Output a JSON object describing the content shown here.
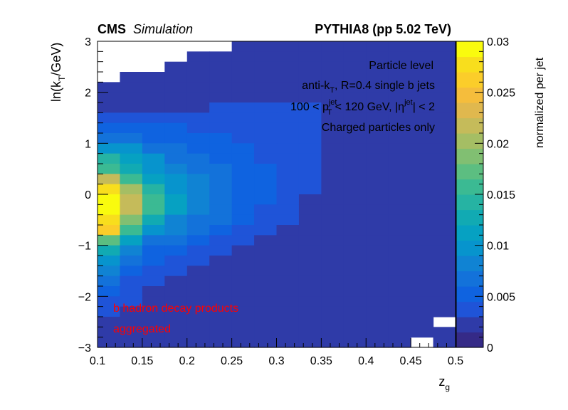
{
  "header": {
    "experiment": "CMS",
    "status": "Simulation",
    "generator": "PYTHIA8 (pp 5.02 TeV)"
  },
  "annotations": {
    "line1": "Particle level",
    "line2": {
      "pre": "anti-k",
      "sub": "T",
      "post": ", R=0.4 single b jets"
    },
    "line3": {
      "a": "100 < p",
      "sup1": "jet",
      "sub1": "T",
      "b": " < 120 GeV, |η",
      "sup2": "jet",
      "c": "| < 2"
    },
    "line4": "Charged particles only",
    "red_line1": "b hadron decay products",
    "red_line2": "aggregated",
    "red_color": "#ff0000"
  },
  "colorbar": {
    "label": "normalized per jet",
    "ticks": [
      "0",
      "0.005",
      "0.01",
      "0.015",
      "0.02",
      "0.025",
      "0.03"
    ]
  },
  "chart_data": {
    "type": "heatmap",
    "title": "",
    "xlabel": {
      "main": "z",
      "sub": "g"
    },
    "ylabel": {
      "pre": "ln(k",
      "sub": "T",
      "post": "/GeV)"
    },
    "x_ticks": [
      "0.1",
      "0.15",
      "0.2",
      "0.25",
      "0.3",
      "0.35",
      "0.4",
      "0.45",
      "0.5"
    ],
    "y_ticks": [
      "−3",
      "−2",
      "−1",
      "0",
      "1",
      "2",
      "3"
    ],
    "xlim": [
      0.1,
      0.5
    ],
    "ylim": [
      -3,
      3
    ],
    "zlim": [
      0,
      0.03
    ],
    "x_bin_width": 0.025,
    "y_bin_width": 0.2,
    "x_bins": 16,
    "y_bins": 30,
    "rows_order": "top (y=3) to bottom (y=-3)",
    "empty_cells": "null",
    "z": [
      [
        null,
        null,
        null,
        null,
        null,
        null,
        0.002,
        0.002,
        0.002,
        0.002,
        0.002,
        0.002,
        0.002,
        0.002,
        0.002,
        0.002
      ],
      [
        null,
        null,
        null,
        null,
        0.002,
        0.002,
        0.002,
        0.002,
        0.002,
        0.002,
        0.002,
        0.002,
        0.002,
        0.002,
        0.002,
        0.002
      ],
      [
        null,
        null,
        null,
        0.002,
        0.002,
        0.002,
        0.002,
        0.002,
        0.002,
        0.002,
        0.002,
        0.002,
        0.002,
        0.002,
        0.002,
        0.002
      ],
      [
        null,
        0.002,
        0.002,
        0.002,
        0.002,
        0.002,
        0.002,
        0.002,
        0.002,
        0.002,
        0.002,
        0.002,
        0.002,
        0.002,
        0.002,
        0.0025
      ],
      [
        0.002,
        0.002,
        0.002,
        0.002,
        0.002,
        0.002,
        0.002,
        0.002,
        0.002,
        0.002,
        0.002,
        0.002,
        0.002,
        0.002,
        0.0025,
        0.0025
      ],
      [
        0.002,
        0.002,
        0.002,
        0.002,
        0.002,
        0.002,
        0.0025,
        0.0025,
        0.0025,
        0.0025,
        0.0025,
        0.002,
        0.002,
        0.002,
        0.002,
        0.002
      ],
      [
        0.0025,
        0.0025,
        0.0025,
        0.0025,
        0.0025,
        0.003,
        0.003,
        0.003,
        0.003,
        0.003,
        0.0025,
        0.002,
        0.002,
        0.002,
        0.002,
        0.002
      ],
      [
        0.003,
        0.003,
        0.003,
        0.0035,
        0.0035,
        0.0035,
        0.003,
        0.003,
        0.003,
        0.003,
        0.0025,
        0.0025,
        0.002,
        0.002,
        0.002,
        0.002
      ],
      [
        0.0045,
        0.0045,
        0.0045,
        0.0045,
        0.004,
        0.004,
        0.0035,
        0.0035,
        0.003,
        0.003,
        0.0025,
        0.0025,
        0.0025,
        0.002,
        0.002,
        0.002
      ],
      [
        0.006,
        0.006,
        0.0055,
        0.005,
        0.0045,
        0.0045,
        0.004,
        0.0035,
        0.0035,
        0.003,
        0.0025,
        0.0025,
        0.002,
        0.002,
        0.002,
        0.002
      ],
      [
        0.01,
        0.009,
        0.007,
        0.006,
        0.0055,
        0.005,
        0.0045,
        0.004,
        0.0035,
        0.003,
        0.0025,
        0.002,
        0.002,
        0.002,
        0.002,
        0.002
      ],
      [
        0.0135,
        0.0115,
        0.009,
        0.007,
        0.006,
        0.0055,
        0.005,
        0.004,
        0.0035,
        0.003,
        0.0025,
        0.002,
        0.002,
        0.002,
        0.002,
        0.002
      ],
      [
        0.016,
        0.013,
        0.01,
        0.008,
        0.0065,
        0.006,
        0.005,
        0.0045,
        0.0035,
        0.003,
        0.002,
        0.002,
        0.002,
        0.002,
        0.002,
        0.002
      ],
      [
        0.0215,
        0.0155,
        0.011,
        0.009,
        0.0075,
        0.006,
        0.005,
        0.0045,
        0.0035,
        0.003,
        0.002,
        0.002,
        0.002,
        0.002,
        0.002,
        0.002
      ],
      [
        0.0275,
        0.02,
        0.014,
        0.01,
        0.008,
        0.0065,
        0.0055,
        0.0045,
        0.0035,
        0.003,
        0.002,
        0.002,
        0.002,
        0.002,
        0.002,
        0.002
      ],
      [
        0.0295,
        0.021,
        0.015,
        0.0105,
        0.008,
        0.007,
        0.0055,
        0.0045,
        0.0035,
        0.0025,
        0.002,
        0.002,
        0.002,
        0.002,
        0.002,
        0.002
      ],
      [
        0.029,
        0.021,
        0.016,
        0.0105,
        0.008,
        0.0065,
        0.0055,
        0.004,
        0.003,
        0.0025,
        0.002,
        0.002,
        0.002,
        0.002,
        0.002,
        0.002
      ],
      [
        0.028,
        0.018,
        0.013,
        0.0085,
        0.007,
        0.006,
        0.0045,
        0.0035,
        0.003,
        0.002,
        0.002,
        0.002,
        0.002,
        0.002,
        0.002,
        0.002
      ],
      [
        0.0255,
        0.015,
        0.01,
        0.0075,
        0.006,
        0.005,
        0.004,
        0.003,
        0.0025,
        0.002,
        0.002,
        0.002,
        0.002,
        0.002,
        0.002,
        0.002
      ],
      [
        0.0175,
        0.0105,
        0.007,
        0.006,
        0.005,
        0.004,
        0.0035,
        0.0025,
        0.002,
        0.002,
        0.002,
        0.002,
        0.002,
        0.002,
        0.002,
        0.002
      ],
      [
        0.013,
        0.0075,
        0.0055,
        0.0045,
        0.004,
        0.003,
        0.0025,
        0.002,
        0.002,
        0.002,
        0.002,
        0.002,
        0.002,
        0.002,
        0.002,
        0.002
      ],
      [
        0.0095,
        0.006,
        0.0045,
        0.004,
        0.003,
        0.0025,
        0.002,
        0.002,
        0.002,
        0.002,
        0.002,
        0.002,
        0.002,
        0.002,
        0.002,
        0.002
      ],
      [
        0.0075,
        0.005,
        0.004,
        0.003,
        0.0025,
        0.002,
        0.002,
        0.002,
        0.002,
        0.002,
        0.002,
        0.002,
        0.002,
        0.002,
        0.002,
        0.002
      ],
      [
        0.006,
        0.004,
        0.003,
        0.0025,
        0.002,
        0.002,
        0.002,
        0.002,
        0.002,
        0.002,
        0.002,
        0.002,
        0.002,
        0.002,
        0.002,
        0.002
      ],
      [
        0.0045,
        0.0035,
        0.0025,
        0.002,
        0.002,
        0.002,
        0.002,
        0.002,
        0.002,
        0.002,
        0.002,
        0.002,
        0.002,
        0.002,
        0.002,
        0.002
      ],
      [
        0.0035,
        0.003,
        0.002,
        0.002,
        0.002,
        0.002,
        0.002,
        0.002,
        0.002,
        0.002,
        0.002,
        0.002,
        0.002,
        0.002,
        0.002,
        0.002
      ],
      [
        0.003,
        0.0025,
        0.002,
        0.002,
        0.002,
        0.002,
        0.002,
        0.002,
        0.002,
        0.002,
        0.002,
        0.002,
        0.002,
        0.002,
        0.002,
        0.002
      ],
      [
        0.0025,
        0.002,
        0.002,
        0.002,
        0.002,
        0.002,
        0.002,
        0.002,
        0.002,
        0.002,
        0.002,
        0.002,
        0.002,
        0.002,
        0.002,
        null
      ],
      [
        0.002,
        0.002,
        0.002,
        0.002,
        0.002,
        0.002,
        0.002,
        0.002,
        0.002,
        0.002,
        0.002,
        0.002,
        0.002,
        0.002,
        0.002,
        0.002
      ],
      [
        0.002,
        0.002,
        0.002,
        0.002,
        0.002,
        0.002,
        0.002,
        0.002,
        0.002,
        0.002,
        0.002,
        0.002,
        0.002,
        0.002,
        null,
        0.002
      ]
    ],
    "palette": [
      "#352a87",
      "#2f3ba8",
      "#1f54d8",
      "#0f63e0",
      "#1372da",
      "#1083d3",
      "#0794cd",
      "#06a1c2",
      "#11aab3",
      "#26b3a3",
      "#3bba93",
      "#5cbe81",
      "#81bf72",
      "#a5be64",
      "#c5bb5a",
      "#e0b84e",
      "#f5bd3c",
      "#fbcd2a",
      "#f8de1d",
      "#f9fb0e"
    ]
  }
}
